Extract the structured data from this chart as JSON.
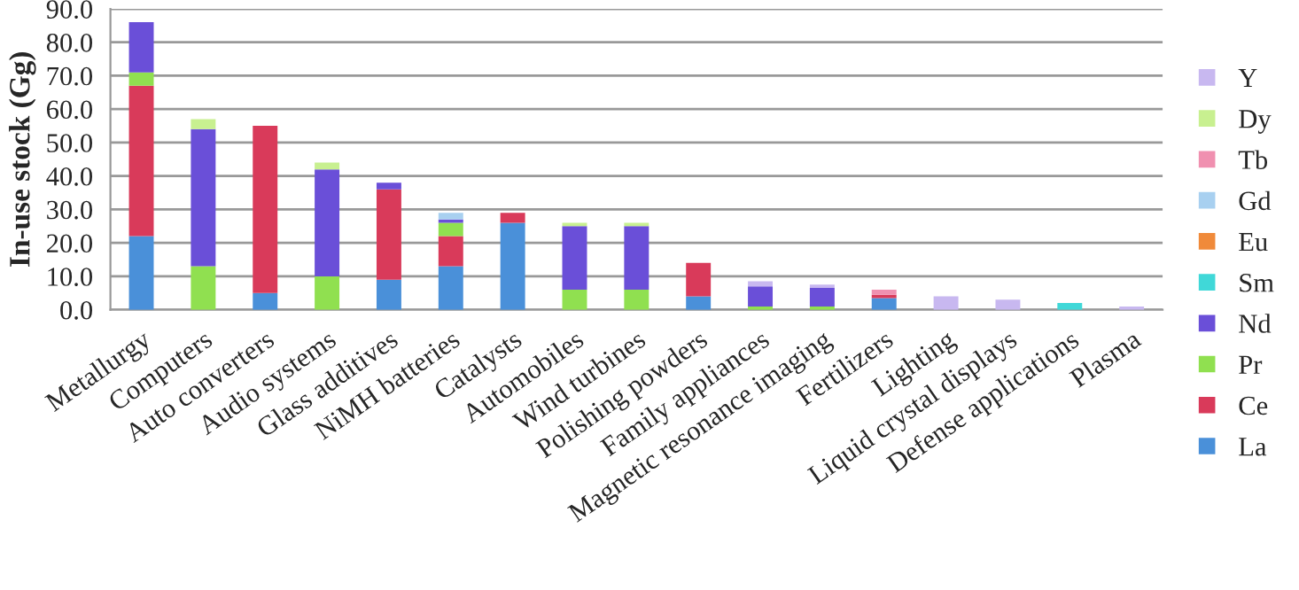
{
  "chart_data": {
    "type": "bar",
    "stacked": true,
    "ylabel": "In-use stock (Gg)",
    "categories": [
      "Metallurgy",
      "Computers",
      "Auto converters",
      "Audio systems",
      "Glass additives",
      "NiMH batteries",
      "Catalysts",
      "Automobiles",
      "Wind turbines",
      "Polishing powders",
      "Family appliances",
      "Magnetic resonance imaging",
      "Fertilizers",
      "Lighting",
      "Liquid crystal displays",
      "Defense applications",
      "Plasma"
    ],
    "series": [
      {
        "name": "La",
        "color": "#4a90d9",
        "values": [
          22,
          null,
          5,
          null,
          9,
          13,
          26,
          null,
          null,
          4,
          null,
          null,
          3.5,
          null,
          null,
          null,
          null
        ]
      },
      {
        "name": "Ce",
        "color": "#d93a5a",
        "values": [
          45,
          null,
          50,
          null,
          27,
          9,
          3,
          null,
          null,
          10,
          null,
          null,
          1,
          null,
          null,
          null,
          null
        ]
      },
      {
        "name": "Pr",
        "color": "#90e050",
        "values": [
          4,
          13,
          null,
          10,
          null,
          4,
          null,
          6,
          6,
          null,
          1,
          1,
          null,
          null,
          null,
          null,
          null
        ]
      },
      {
        "name": "Nd",
        "color": "#6a4fd8",
        "values": [
          15,
          41,
          null,
          32,
          2,
          1,
          null,
          19,
          19,
          null,
          6,
          5.5,
          null,
          null,
          null,
          null,
          null
        ]
      },
      {
        "name": "Sm",
        "color": "#40d8d8",
        "values": [
          null,
          null,
          null,
          null,
          null,
          null,
          null,
          null,
          null,
          null,
          null,
          null,
          null,
          null,
          null,
          2,
          null
        ]
      },
      {
        "name": "Eu",
        "color": "#f08a3a",
        "values": [
          null,
          null,
          null,
          null,
          null,
          null,
          null,
          null,
          null,
          null,
          null,
          null,
          null,
          null,
          null,
          null,
          null
        ]
      },
      {
        "name": "Gd",
        "color": "#a8d0f0",
        "values": [
          null,
          null,
          null,
          null,
          null,
          2,
          null,
          null,
          null,
          null,
          null,
          null,
          null,
          null,
          null,
          null,
          null
        ]
      },
      {
        "name": "Tb",
        "color": "#f090b0",
        "values": [
          null,
          null,
          null,
          null,
          null,
          null,
          null,
          null,
          null,
          null,
          null,
          null,
          1.5,
          null,
          null,
          null,
          null
        ]
      },
      {
        "name": "Dy",
        "color": "#c8f090",
        "values": [
          null,
          3,
          null,
          2,
          null,
          null,
          null,
          1,
          1,
          null,
          null,
          null,
          null,
          null,
          null,
          null,
          null
        ]
      },
      {
        "name": "Y",
        "color": "#c8b8f0",
        "values": [
          null,
          null,
          null,
          null,
          null,
          null,
          null,
          null,
          null,
          null,
          1.5,
          1,
          null,
          4,
          3,
          null,
          1
        ]
      }
    ],
    "ylim": [
      0,
      90
    ],
    "yticks": [
      {
        "value": 0,
        "label": "0.0"
      },
      {
        "value": 10,
        "label": "10.0"
      },
      {
        "value": 20,
        "label": "20.0"
      },
      {
        "value": 30,
        "label": "30.0"
      },
      {
        "value": 40,
        "label": "40.0"
      },
      {
        "value": 50,
        "label": "50.0"
      },
      {
        "value": 60,
        "label": "60.0"
      },
      {
        "value": 70,
        "label": "70.0"
      },
      {
        "value": 80,
        "label": "80.0"
      },
      {
        "value": 90,
        "label": "90.0"
      }
    ],
    "grid": "y",
    "legend": "right"
  }
}
